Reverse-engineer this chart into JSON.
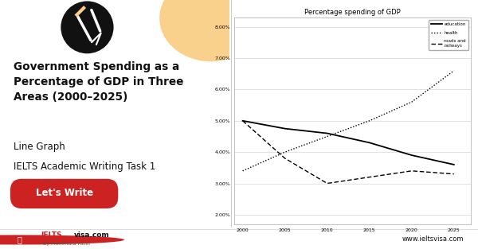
{
  "chart_title": "Percentage spending of GDP",
  "years": [
    2000,
    2005,
    2010,
    2015,
    2020,
    2025
  ],
  "education": [
    5.0,
    4.75,
    4.6,
    4.3,
    3.9,
    3.6
  ],
  "health": [
    3.4,
    4.0,
    4.5,
    5.0,
    5.6,
    6.6
  ],
  "roads_railways": [
    5.0,
    3.8,
    3.0,
    3.2,
    3.4,
    3.3
  ],
  "yticks": [
    2.0,
    3.0,
    4.0,
    5.0,
    6.0,
    7.0,
    8.0
  ],
  "ylim": [
    1.7,
    8.3
  ],
  "xlim": [
    1999,
    2027
  ],
  "bg_orange": "#F5A623",
  "bg_orange_light": "#F8BE5C",
  "bg_white": "#FFFFFF",
  "title_text": "Government Spending as a\nPercentage of GDP in Three\nAreas (2000–2025)",
  "subtitle1": "Line Graph",
  "subtitle2": "IELTS Academic Writing Task 1",
  "button_text": "Let's Write",
  "button_color": "#CC2222",
  "button_text_color": "#FFFFFF",
  "footer_text": "www.ieltsvisa.com",
  "pencil_circle_color": "#111111",
  "legend_education": "education",
  "legend_health": "health",
  "legend_roads": "roads and\nrailways",
  "line_color": "#000000",
  "chart_bg": "#FFFFFF",
  "font_color": "#111111",
  "grid_color": "#CCCCCC",
  "border_color": "#AAAAAA"
}
